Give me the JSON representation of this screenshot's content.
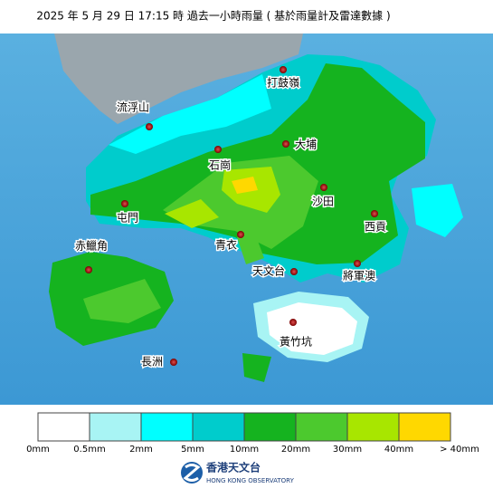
{
  "header": {
    "title": "2025 年 5 月 29 日 17:15 時 過去一小時雨量 ( 基於雨量計及雷達數據 )"
  },
  "stations": [
    "打鼓嶺",
    "流浮山",
    "大埔",
    "石崗",
    "沙田",
    "屯門",
    "西貢",
    "青衣",
    "赤鱲角",
    "天文台",
    "將軍澳",
    "黃竹坑",
    "長洲"
  ],
  "legend": {
    "colors": [
      "#ffffff",
      "#a8f4f4",
      "#00ffff",
      "#00cccc",
      "#15b31f",
      "#4cc92e",
      "#a8e600",
      "#ffd800"
    ],
    "labels": [
      "0mm",
      "0.5mm",
      "2mm",
      "5mm",
      "10mm",
      "20mm",
      "30mm",
      "40mm",
      "> 40mm"
    ]
  },
  "footer": {
    "name": "香港天文台",
    "english": "HONG KONG OBSERVATORY"
  }
}
